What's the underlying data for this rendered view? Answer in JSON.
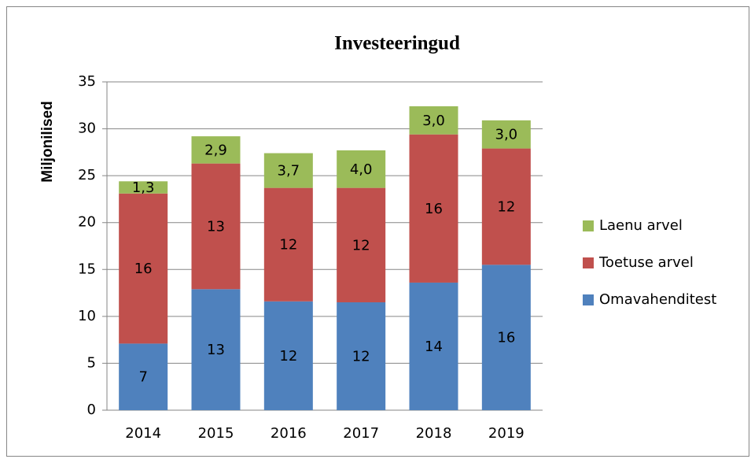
{
  "chart_data": {
    "type": "stacked_bar",
    "title": "Investeeringud",
    "y_label": "Miljonilised",
    "categories": [
      "2014",
      "2015",
      "2016",
      "2017",
      "2018",
      "2019"
    ],
    "series": [
      {
        "name": "Omavahenditest",
        "color": "#4f81bd",
        "values": [
          7.1,
          12.9,
          11.6,
          11.5,
          13.6,
          15.5
        ],
        "value_labels": [
          "7",
          "13",
          "12",
          "12",
          "14",
          "16"
        ]
      },
      {
        "name": "Toetuse arvel",
        "color": "#c0504d",
        "values": [
          16.0,
          13.4,
          12.1,
          12.2,
          15.8,
          12.4
        ],
        "value_labels": [
          "16",
          "13",
          "12",
          "12",
          "16",
          "12"
        ]
      },
      {
        "name": "Laenu arvel",
        "color": "#9bbb59",
        "values": [
          1.3,
          2.9,
          3.7,
          4.0,
          3.0,
          3.0
        ],
        "value_labels": [
          "1,3",
          "2,9",
          "3,7",
          "4,0",
          "3,0",
          "3,0"
        ]
      }
    ],
    "ylim": [
      0,
      35
    ],
    "yticks": [
      0,
      5,
      10,
      15,
      20,
      25,
      30,
      35
    ],
    "grid": true,
    "legend": "right"
  }
}
